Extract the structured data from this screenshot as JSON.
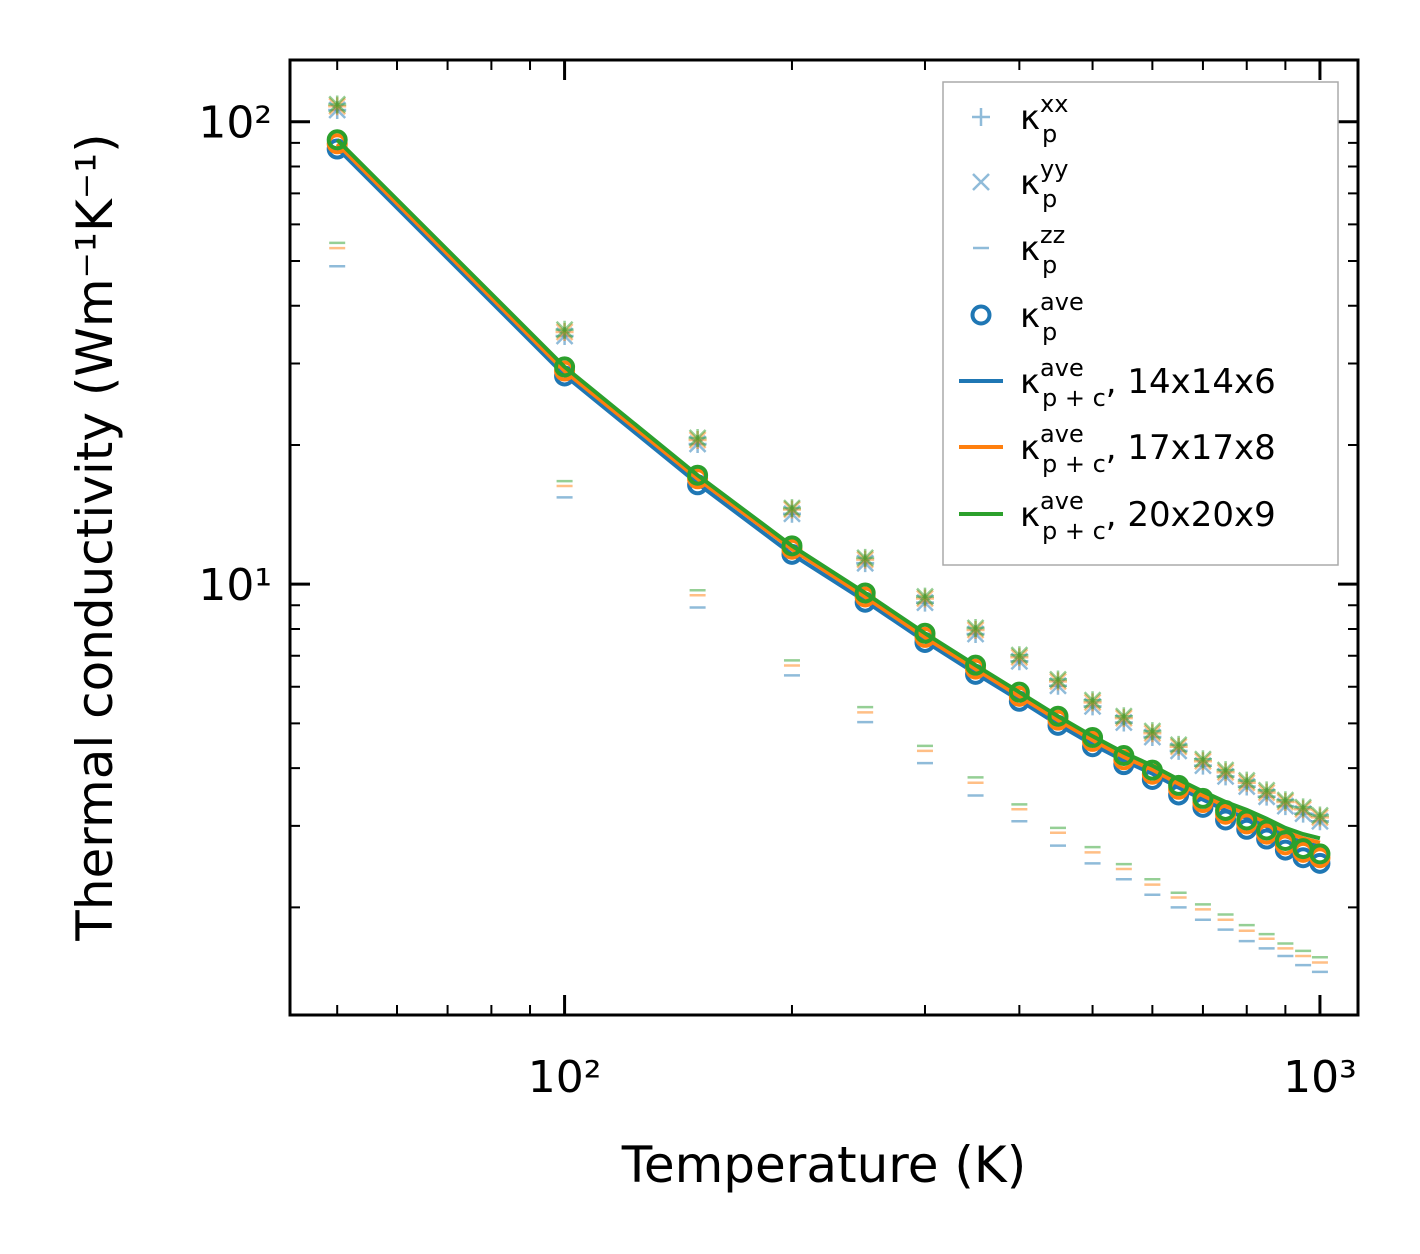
{
  "chart_data": {
    "type": "scatter",
    "title": "",
    "xlabel": "Temperature (K)",
    "ylabel": "Thermal conductivity (Wm⁻¹K⁻¹)",
    "xscale": "log",
    "yscale": "log",
    "xlim": [
      43.3,
      1123
    ],
    "ylim": [
      1.17,
      136
    ],
    "x_ticks": [
      {
        "value": 100,
        "label": "10²"
      },
      {
        "value": 1000,
        "label": "10³"
      }
    ],
    "y_ticks": [
      {
        "value": 10,
        "label": "10¹"
      },
      {
        "value": 100,
        "label": "10²"
      }
    ],
    "grid": false,
    "legend_position": "top-right",
    "x": [
      50,
      100,
      150,
      200,
      250,
      300,
      350,
      400,
      450,
      500,
      550,
      600,
      650,
      700,
      750,
      800,
      850,
      900,
      950,
      1000
    ],
    "grids": [
      {
        "name": "14x14x6",
        "color": "#1f77b4",
        "kxx": [
          106,
          34.4,
          20.1,
          14.2,
          11.1,
          9.12,
          7.8,
          6.81,
          6.03,
          5.44,
          5.02,
          4.67,
          4.36,
          4.05,
          3.84,
          3.65,
          3.47,
          3.31,
          3.19,
          3.07
        ],
        "kyy": [
          106,
          34.4,
          20.1,
          14.2,
          11.1,
          9.12,
          7.8,
          6.81,
          6.03,
          5.44,
          5.02,
          4.67,
          4.36,
          4.05,
          3.84,
          3.65,
          3.47,
          3.31,
          3.19,
          3.07
        ],
        "kzz": [
          48.7,
          15.4,
          8.9,
          6.35,
          5.03,
          4.1,
          3.49,
          3.07,
          2.72,
          2.49,
          2.3,
          2.13,
          2.0,
          1.88,
          1.79,
          1.69,
          1.63,
          1.57,
          1.5,
          1.45
        ],
        "kave": [
          87.3,
          28.2,
          16.4,
          11.6,
          9.14,
          7.48,
          6.38,
          5.58,
          4.95,
          4.45,
          4.07,
          3.78,
          3.5,
          3.29,
          3.09,
          2.95,
          2.81,
          2.66,
          2.56,
          2.49
        ],
        "kave_pc": [
          87.7,
          28.3,
          16.5,
          11.6,
          9.19,
          7.52,
          6.41,
          5.61,
          4.97,
          4.5,
          4.15,
          3.89,
          3.63,
          3.42,
          3.24,
          3.12,
          2.99,
          2.85,
          2.76,
          2.71
        ]
      },
      {
        "name": "17x17x8",
        "color": "#ff7f0e",
        "kxx": [
          108,
          35.1,
          20.5,
          14.5,
          11.3,
          9.31,
          7.96,
          6.95,
          6.16,
          5.55,
          5.13,
          4.76,
          4.45,
          4.14,
          3.92,
          3.72,
          3.54,
          3.38,
          3.26,
          3.13
        ],
        "kyy": [
          108,
          35.1,
          20.5,
          14.5,
          11.3,
          9.31,
          7.96,
          6.95,
          6.16,
          5.55,
          5.13,
          4.76,
          4.45,
          4.14,
          3.92,
          3.72,
          3.54,
          3.38,
          3.26,
          3.13
        ],
        "kzz": [
          53.3,
          16.3,
          9.46,
          6.67,
          5.28,
          4.36,
          3.72,
          3.26,
          2.9,
          2.63,
          2.42,
          2.24,
          2.1,
          1.98,
          1.88,
          1.78,
          1.71,
          1.63,
          1.57,
          1.52
        ],
        "kave": [
          89.6,
          28.9,
          16.9,
          11.9,
          9.38,
          7.67,
          6.55,
          5.72,
          5.08,
          4.57,
          4.17,
          3.88,
          3.6,
          3.37,
          3.18,
          3.03,
          2.88,
          2.73,
          2.63,
          2.56
        ],
        "kave_pc": [
          89.6,
          28.9,
          16.9,
          11.9,
          9.38,
          7.67,
          6.55,
          5.72,
          5.08,
          4.6,
          4.23,
          3.97,
          3.7,
          3.49,
          3.31,
          3.19,
          3.05,
          2.91,
          2.82,
          2.76
        ]
      },
      {
        "name": "20x20x9",
        "color": "#2ca02c",
        "kxx": [
          109,
          35.5,
          20.7,
          14.6,
          11.4,
          9.4,
          8.04,
          7.02,
          6.22,
          5.61,
          5.18,
          4.81,
          4.49,
          4.18,
          3.96,
          3.76,
          3.58,
          3.41,
          3.29,
          3.16
        ],
        "kyy": [
          109,
          35.5,
          20.7,
          14.6,
          11.4,
          9.4,
          8.04,
          7.02,
          6.22,
          5.61,
          5.18,
          4.81,
          4.49,
          4.18,
          3.96,
          3.76,
          3.58,
          3.41,
          3.29,
          3.16
        ],
        "kzz": [
          54.7,
          16.7,
          9.7,
          6.84,
          5.42,
          4.47,
          3.82,
          3.34,
          2.97,
          2.7,
          2.48,
          2.3,
          2.15,
          2.03,
          1.93,
          1.83,
          1.75,
          1.67,
          1.61,
          1.56
        ],
        "kave": [
          91.4,
          29.5,
          17.2,
          12.1,
          9.57,
          7.83,
          6.68,
          5.84,
          5.18,
          4.66,
          4.26,
          3.96,
          3.67,
          3.44,
          3.24,
          3.09,
          2.94,
          2.79,
          2.68,
          2.61
        ],
        "kave_pc": [
          91.4,
          29.5,
          17.2,
          12.1,
          9.57,
          7.83,
          6.68,
          5.84,
          5.18,
          4.69,
          4.32,
          4.05,
          3.78,
          3.56,
          3.38,
          3.25,
          3.11,
          2.97,
          2.88,
          2.82
        ]
      }
    ],
    "legend": [
      {
        "marker": "plus",
        "color": "#1f77b4",
        "symbol": "κ",
        "sup": "xx",
        "sub": "p",
        "suffix": ""
      },
      {
        "marker": "cross",
        "color": "#1f77b4",
        "symbol": "κ",
        "sup": "yy",
        "sub": "p",
        "suffix": ""
      },
      {
        "marker": "dash",
        "color": "#1f77b4",
        "symbol": "κ",
        "sup": "zz",
        "sub": "p",
        "suffix": ""
      },
      {
        "marker": "circle",
        "color": "#1f77b4",
        "symbol": "κ",
        "sup": "ave",
        "sub": "p",
        "suffix": ""
      },
      {
        "marker": "line",
        "color": "#1f77b4",
        "symbol": "κ",
        "sup": "ave",
        "sub": "p + c",
        "suffix": ", 14x14x6"
      },
      {
        "marker": "line",
        "color": "#ff7f0e",
        "symbol": "κ",
        "sup": "ave",
        "sub": "p + c",
        "suffix": ", 17x17x8"
      },
      {
        "marker": "line",
        "color": "#2ca02c",
        "symbol": "κ",
        "sup": "ave",
        "sub": "p + c",
        "suffix": ", 20x20x9"
      }
    ]
  }
}
